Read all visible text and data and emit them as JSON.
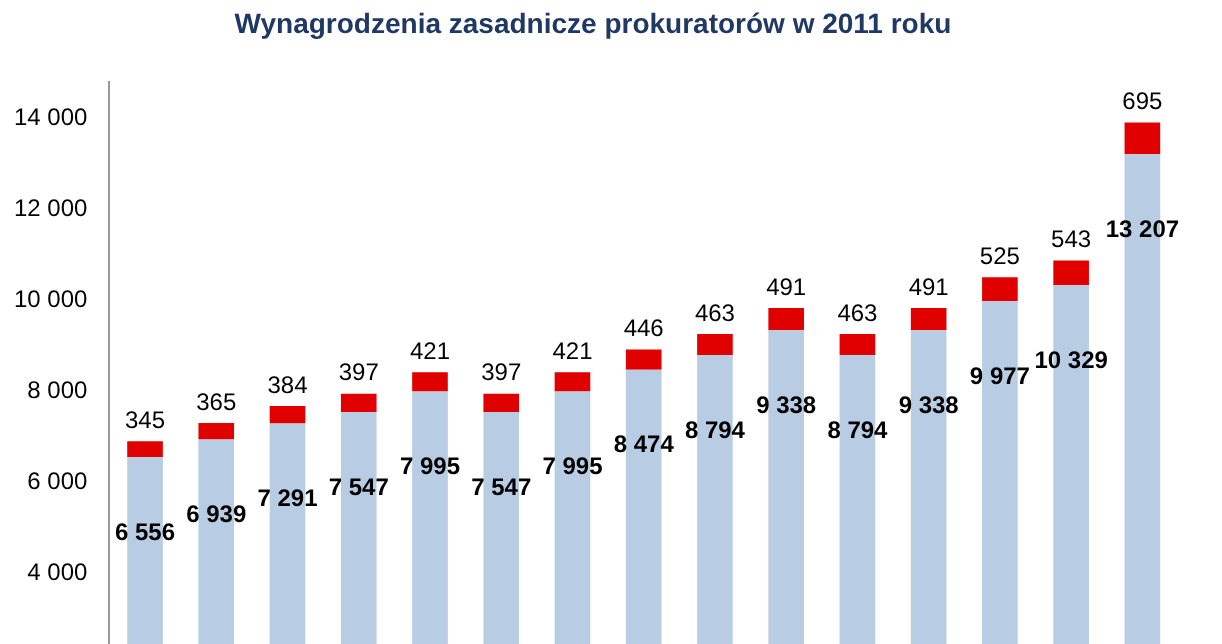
{
  "chart_data": {
    "type": "bar",
    "title": "Wynagrodzenia zasadnicze prokuratorów w 2011 roku",
    "stacked": true,
    "categories": [
      null,
      null,
      null,
      null,
      null,
      null,
      null,
      null,
      null,
      null,
      null,
      null,
      null,
      null,
      null
    ],
    "series": [
      {
        "color": "#b8cce4",
        "values": [
          6556,
          6939,
          7291,
          7547,
          7995,
          7547,
          7995,
          8474,
          8794,
          9338,
          8794,
          9338,
          9977,
          10329,
          13207
        ]
      },
      {
        "color": "#e00000",
        "values": [
          345,
          365,
          384,
          397,
          421,
          397,
          421,
          446,
          463,
          491,
          463,
          491,
          525,
          543,
          695
        ]
      }
    ],
    "data_labels": true,
    "ylim": [
      0,
      14800
    ],
    "yticks": [
      4000,
      6000,
      8000,
      10000,
      12000,
      14000
    ],
    "grid": false,
    "legend": false,
    "tick_labels": "y"
  }
}
